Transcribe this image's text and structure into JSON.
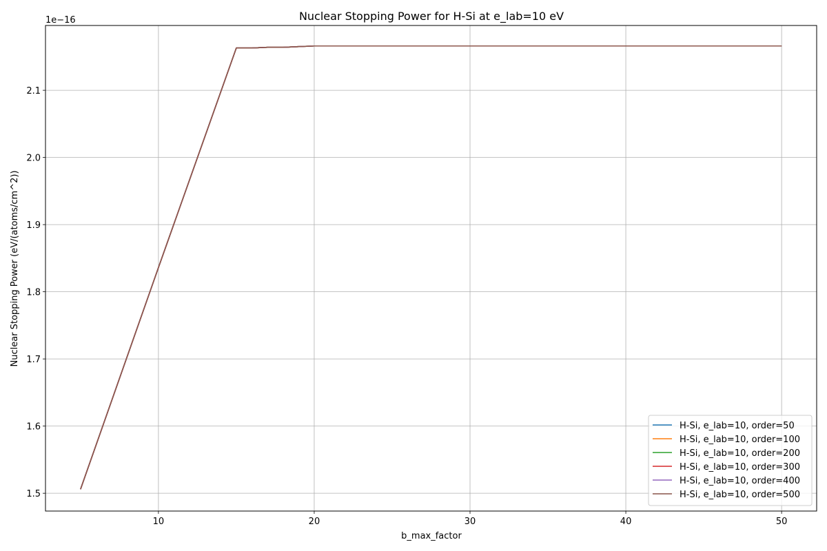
{
  "chart_data": {
    "type": "line",
    "title": "Nuclear Stopping Power for H-Si at e_lab=10 eV",
    "xlabel": "b_max_factor",
    "ylabel": "Nuclear Stopping Power (eV/(atoms/cm^2))",
    "offset_text": "1e−16",
    "xlim": [
      2.75,
      52.25
    ],
    "ylim": [
      1.4735,
      2.1965
    ],
    "xticks": [
      10,
      20,
      30,
      40,
      50
    ],
    "xtick_labels": [
      "10",
      "20",
      "30",
      "40",
      "50"
    ],
    "yticks": [
      1.5,
      1.6,
      1.7,
      1.8,
      1.9,
      2.0,
      2.1
    ],
    "ytick_labels": [
      "1.5",
      "1.6",
      "1.7",
      "1.8",
      "1.9",
      "2.0",
      "2.1"
    ],
    "grid": true,
    "legend_position": "lower right",
    "x": [
      5,
      10,
      15,
      16,
      17,
      18,
      19,
      20,
      25,
      30,
      35,
      40,
      45,
      50
    ],
    "series": [
      {
        "name": "H-Si, e_lab=10, order=50",
        "color": "#1f77b4",
        "values": [
          1.506,
          1.836,
          2.163,
          2.163,
          2.164,
          2.164,
          2.165,
          2.166,
          2.166,
          2.166,
          2.166,
          2.166,
          2.166,
          2.166
        ]
      },
      {
        "name": "H-Si, e_lab=10, order=100",
        "color": "#ff7f0e",
        "values": [
          1.506,
          1.836,
          2.163,
          2.163,
          2.164,
          2.164,
          2.165,
          2.166,
          2.166,
          2.166,
          2.166,
          2.166,
          2.166,
          2.166
        ]
      },
      {
        "name": "H-Si, e_lab=10, order=200",
        "color": "#2ca02c",
        "values": [
          1.506,
          1.836,
          2.163,
          2.163,
          2.164,
          2.164,
          2.165,
          2.166,
          2.166,
          2.166,
          2.166,
          2.166,
          2.166,
          2.166
        ]
      },
      {
        "name": "H-Si, e_lab=10, order=300",
        "color": "#d62728",
        "values": [
          1.506,
          1.836,
          2.163,
          2.163,
          2.164,
          2.164,
          2.165,
          2.166,
          2.166,
          2.166,
          2.166,
          2.166,
          2.166,
          2.166
        ]
      },
      {
        "name": "H-Si, e_lab=10, order=400",
        "color": "#9467bd",
        "values": [
          1.506,
          1.836,
          2.163,
          2.163,
          2.164,
          2.164,
          2.165,
          2.166,
          2.166,
          2.166,
          2.166,
          2.166,
          2.166,
          2.166
        ]
      },
      {
        "name": "H-Si, e_lab=10, order=500",
        "color": "#8c564b",
        "values": [
          1.506,
          1.836,
          2.163,
          2.163,
          2.164,
          2.164,
          2.165,
          2.166,
          2.166,
          2.166,
          2.166,
          2.166,
          2.166,
          2.166
        ]
      }
    ]
  }
}
